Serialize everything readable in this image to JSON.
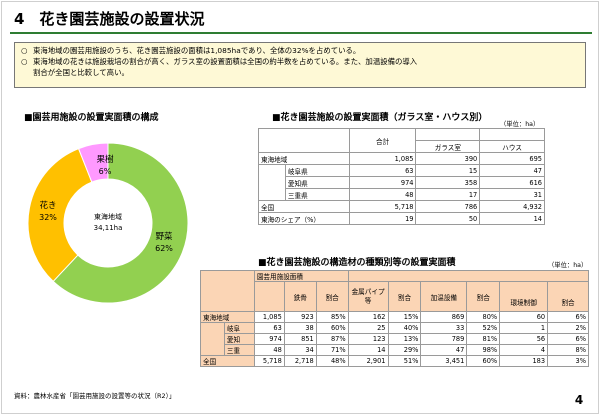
{
  "page": {
    "title": "4　花き園芸施設の設置状況",
    "page_number": "4",
    "source": "資料：農林水産省「園芸用施設の設置等の状況（R2）」"
  },
  "summary": {
    "bullet": "○",
    "line1": "東海地域の園芸用施設のうち、花き園芸施設の面積は1,085haであり、全体の32%を占めている。",
    "line2a": "東海地域の花きは施設栽培の割合が高く、ガラス室の設置面積は全国の約半数を占めている。また、加温設備の導入",
    "line2b": "割合が全国と比較して高い。"
  },
  "chart_section": {
    "title": "■園芸用施設の設置実面積の構成"
  },
  "chart_data": {
    "type": "pie",
    "subtype": "donut",
    "center_label": "東海地域",
    "center_value": "34,11ha",
    "slices": [
      {
        "name": "野菜",
        "label": "62%",
        "value": 62,
        "color": "#92d050"
      },
      {
        "name": "花き",
        "label": "32%",
        "value": 32,
        "color": "#ffc000"
      },
      {
        "name": "果樹",
        "label": "6%",
        "value": 6,
        "color": "#ff99ff"
      }
    ]
  },
  "table1": {
    "title": "■花き園芸施設の設置実面積（ガラス室・ハウス別）",
    "unit": "（単位：ha）",
    "header": {
      "total": "合計",
      "glass": "ガラス室",
      "house": "ハウス"
    },
    "rows": [
      {
        "region": "東海地域",
        "total": "1,085",
        "glass": "390",
        "house": "695"
      },
      {
        "region": "岐阜県",
        "total": "63",
        "glass": "15",
        "house": "47"
      },
      {
        "region": "愛知県",
        "total": "974",
        "glass": "358",
        "house": "616"
      },
      {
        "region": "三重県",
        "total": "48",
        "glass": "17",
        "house": "31"
      },
      {
        "region": "全国",
        "total": "5,718",
        "glass": "786",
        "house": "4,932"
      },
      {
        "region": "東海のシェア（%）",
        "total": "19",
        "glass": "50",
        "house": "14"
      }
    ]
  },
  "table2": {
    "title": "■花き園芸施設の構造材の種類別等の設置実面積",
    "unit": "（単位：ha）",
    "group_header": "園芸用施設面積",
    "columns": [
      "鉄骨",
      "割合",
      "金属パイプ等",
      "割合",
      "加温設備",
      "割合",
      "環境制御",
      "割合"
    ],
    "rows": [
      {
        "region": "東海地域",
        "cells": [
          "1,085",
          "923",
          "85%",
          "162",
          "15%",
          "869",
          "80%",
          "60",
          "6%"
        ]
      },
      {
        "region": "岐阜",
        "cells": [
          "63",
          "38",
          "60%",
          "25",
          "40%",
          "33",
          "52%",
          "1",
          "2%"
        ]
      },
      {
        "region": "愛知",
        "cells": [
          "974",
          "851",
          "87%",
          "123",
          "13%",
          "789",
          "81%",
          "56",
          "6%"
        ]
      },
      {
        "region": "三重",
        "cells": [
          "48",
          "34",
          "71%",
          "14",
          "29%",
          "47",
          "98%",
          "4",
          "8%"
        ]
      },
      {
        "region": "全国",
        "cells": [
          "5,718",
          "2,718",
          "48%",
          "2,901",
          "51%",
          "3,451",
          "60%",
          "183",
          "3%"
        ]
      }
    ]
  }
}
